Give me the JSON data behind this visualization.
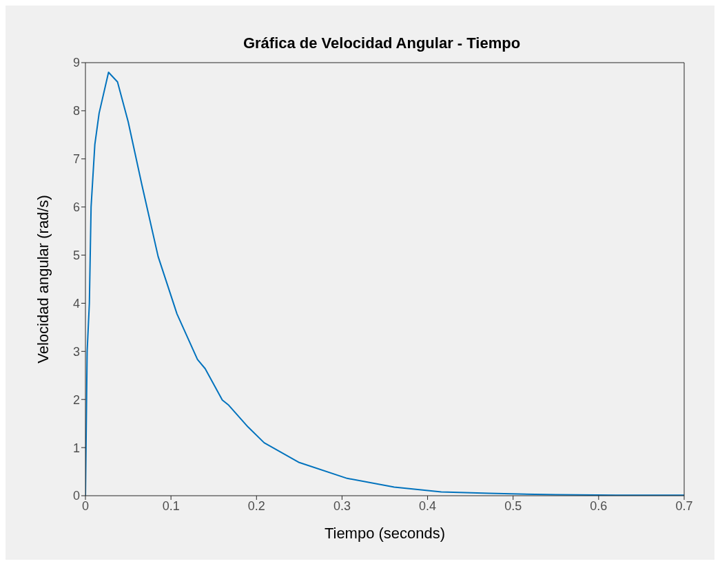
{
  "chart_data": {
    "type": "line",
    "title": "Gráfica de Velocidad Angular - Tiempo",
    "xlabel": "Tiempo (seconds)",
    "ylabel": "Velocidad angular (rad/s)",
    "x": [
      0,
      0.002,
      0.0046,
      0.0066,
      0.011,
      0.016,
      0.027,
      0.0375,
      0.05,
      0.066,
      0.085,
      0.107,
      0.131,
      0.14,
      0.16,
      0.167,
      0.19,
      0.209,
      0.25,
      0.306,
      0.361,
      0.416,
      0.472,
      0.55,
      0.62,
      0.7
    ],
    "series": [
      {
        "color": "#0072bd",
        "values": [
          0,
          3.0,
          4.0,
          6.0,
          7.3,
          7.95,
          8.8,
          8.6,
          7.77,
          6.46,
          4.97,
          3.78,
          2.83,
          2.64,
          1.99,
          1.89,
          1.43,
          1.1,
          0.69,
          0.36,
          0.18,
          0.08,
          0.05,
          0.02,
          0.01,
          0.01
        ]
      }
    ],
    "xlim": [
      0,
      0.7
    ],
    "xticks": [
      0,
      0.1,
      0.2,
      0.3,
      0.4,
      0.5,
      0.6,
      0.7
    ],
    "ylim": [
      0,
      9
    ],
    "yticks": [
      0,
      1,
      2,
      3,
      4,
      5,
      6,
      7,
      8,
      9
    ],
    "grid": false,
    "legend": false,
    "marker": "none",
    "line_style": "solid"
  }
}
